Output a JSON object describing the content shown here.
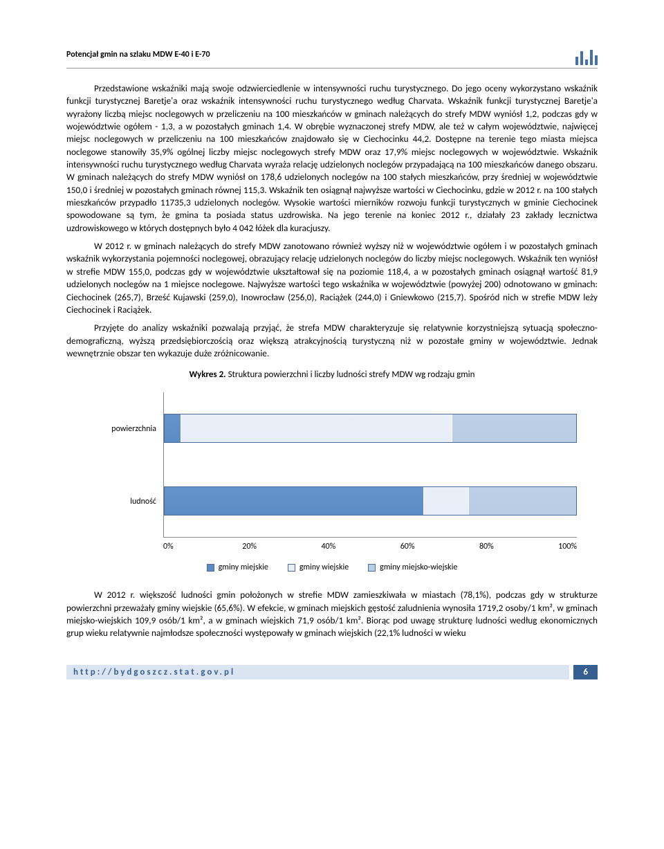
{
  "header": {
    "title": "Potencjał gmin na szlaku MDW E-40 i E-70",
    "logo_bar_heights": [
      12,
      20,
      8,
      22,
      14
    ],
    "logo_color": "#4472a8"
  },
  "paragraphs": {
    "p1": "Przedstawione wskaźniki mają swoje odzwierciedlenie w intensywności ruchu turystycznego. Do jego oceny wykorzystano wskaźnik funkcji turystycznej Baretje'a oraz wskaźnik intensywności ruchu turystycznego według Charvata. Wskaźnik funkcji turystycznej Baretje'a wyrażony liczbą miejsc noclegowych w przeliczeniu na 100 mieszkańców w gminach należących do strefy MDW wyniósł 1,2, podczas gdy w województwie ogółem - 1,3, a w pozostałych gminach 1,4. W obrębie wyznaczonej strefy MDW, ale też w całym województwie, najwięcej miejsc noclegowych w przeliczeniu na 100 mieszkańców znajdowało się w Ciechocinku 44,2. Dostępne na terenie tego miasta miejsca noclegowe stanowiły 35,9% ogólnej liczby miejsc noclegowych strefy MDW oraz 17,9% miejsc noclegowych w województwie. Wskaźnik intensywności ruchu turystycznego według Charvata wyraża relację udzielonych noclegów przypadającą na 100 mieszkańców danego obszaru. W gminach należących do strefy MDW wyniósł on 178,6 udzielonych noclegów na 100 stałych mieszkańców, przy średniej w województwie 150,0 i średniej w pozostałych gminach równej 115,3. Wskaźnik ten osiągnął najwyższe wartości w Ciechocinku, gdzie w 2012 r. na 100 stałych mieszkańców przypadło 11735,3 udzielonych noclegów. Wysokie wartości mierników rozwoju funkcji turystycznych w gminie Ciechocinek spowodowane są tym, że gmina ta posiada status uzdrowiska. Na jego terenie na koniec 2012 r., działały 23 zakłady lecznictwa uzdrowiskowego w których dostępnych było 4 042 łóżek dla kuracjuszy.",
    "p2": "W 2012 r. w gminach należących do strefy MDW zanotowano również wyższy niż w województwie ogółem i w pozostałych gminach wskaźnik wykorzystania pojemności noclegowej, obrazujący relację udzielonych noclegów do liczby miejsc noclegowych. Wskaźnik ten wyniósł w strefie MDW 155,0, podczas gdy w województwie ukształtował się na poziomie 118,4, a w pozostałych gminach osiągnął wartość 81,9 udzielonych noclegów na 1 miejsce noclegowe. Najwyższe wartości tego wskaźnika w województwie (powyżej 200) odnotowano w gminach: Ciechocinek (265,7), Brześć Kujawski (259,0), Inowrocław (256,0), Raciążek (244,0) i Gniewkowo (215,7). Spośród nich w strefie MDW leży Ciechocinek i Raciążek.",
    "p3": "Przyjęte do analizy wskaźniki pozwalają przyjąć, że strefa MDW charakteryzuje się relatywnie korzystniejszą sytuacją społeczno-demograficzną, wyższą przedsiębiorczością oraz większą atrakcyjnością turystyczną niż w pozostałe gminy w województwie. Jednak wewnętrznie obszar ten wykazuje duże zróżnicowanie.",
    "p4": "W 2012 r. większość ludności gmin położonych w strefie MDW zamieszkiwała w miastach (78,1%), podczas gdy w strukturze powierzchni przeważały gminy wiejskie (65,6%). W efekcie, w gminach miejskich gęstość zaludnienia wynosiła 1719,2 osoby/1 km², w gminach miejsko-wiejskich 109,9 osób/1 km², a w gminach wiejskich 71,9 osób/1 km². Biorąc pod uwagę strukturę ludności według ekonomicznych grup wieku relatywnie najmłodsze społeczności występowały w gminach wiejskich (22,1% ludności w wieku"
  },
  "chart": {
    "title_prefix": "Wykres 2.",
    "title_rest": " Struktura powierzchni i liczby ludności strefy MDW wg rodzaju gmin",
    "y_labels": [
      "powierzchnia",
      "ludność"
    ],
    "series": {
      "powierzchnia": [
        4,
        66,
        30
      ],
      "ludnosc": [
        63,
        11,
        26
      ]
    },
    "colors": {
      "miejskie": "#5b8bc5",
      "wiejskie": "#e8eef7",
      "miejsko_wiejskie": "#b8cce4"
    },
    "x_ticks": [
      "0%",
      "20%",
      "40%",
      "60%",
      "80%",
      "100%"
    ],
    "legend": [
      "gminy miejskie",
      "gminy wiejskie",
      "gminy miejsko-wiejskie"
    ]
  },
  "footer": {
    "url": "http://bydgoszcz.stat.gov.pl",
    "page": "6"
  }
}
